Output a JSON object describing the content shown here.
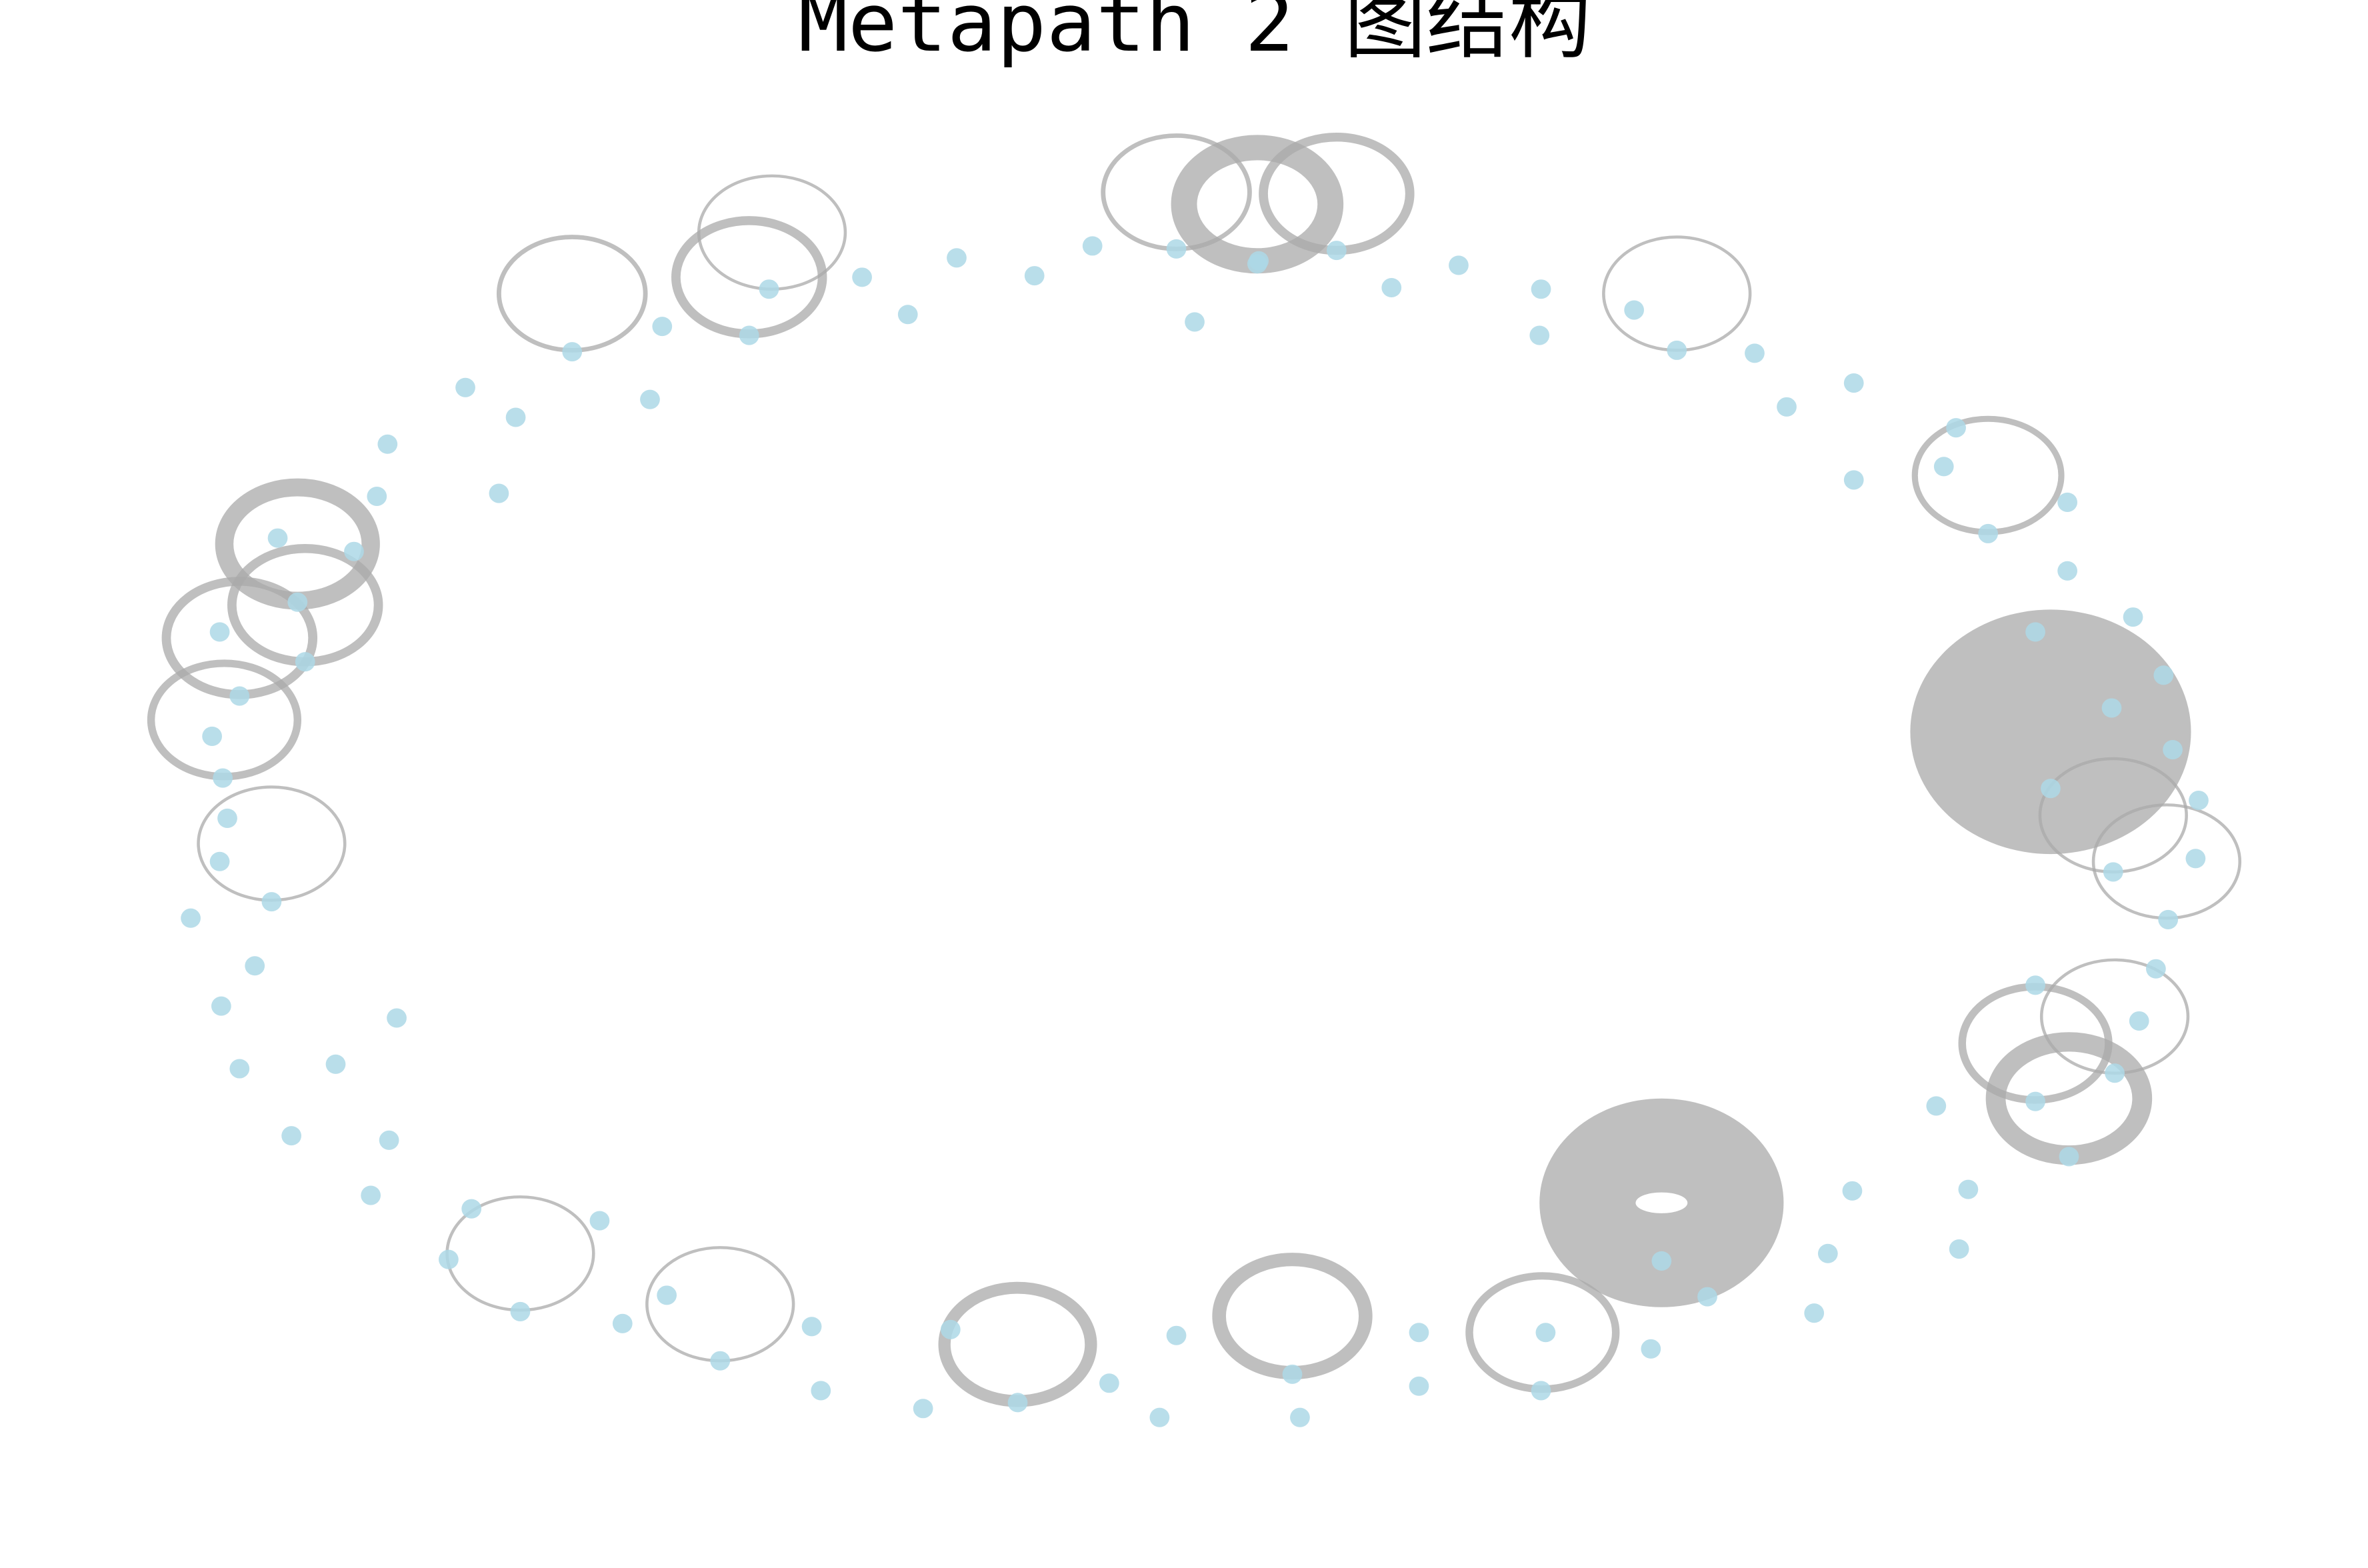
{
  "title": "Metapath 2 图结构",
  "colors": {
    "background": "#ffffff",
    "node": "#add8e6",
    "edge": "#a9a9a9"
  },
  "graph": {
    "node_count": 101,
    "self_loops_shown": true
  }
}
